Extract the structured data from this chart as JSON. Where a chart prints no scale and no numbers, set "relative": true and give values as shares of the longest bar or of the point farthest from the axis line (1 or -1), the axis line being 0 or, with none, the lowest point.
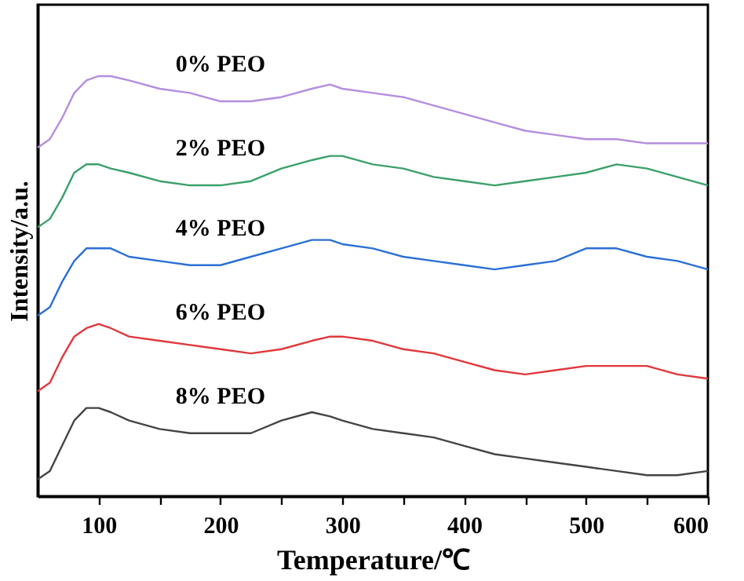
{
  "chart_data": {
    "type": "line",
    "relative": true,
    "xlabel": "Temperature/℃",
    "ylabel": "Intensity/a.u.",
    "x": [
      50,
      60,
      70,
      80,
      90,
      100,
      110,
      125,
      150,
      175,
      200,
      225,
      250,
      275,
      290,
      300,
      325,
      350,
      375,
      400,
      425,
      450,
      475,
      500,
      525,
      550,
      575,
      600
    ],
    "xlim": [
      50,
      600
    ],
    "xticks": [
      100,
      {
        "value": 150,
        "label": null
      },
      200,
      {
        "value": 250,
        "label": null
      },
      300,
      {
        "value": 350,
        "label": null
      },
      400,
      {
        "value": 450,
        "label": null
      },
      500,
      {
        "value": 550,
        "label": null
      },
      600
    ],
    "legend": false,
    "grid": false,
    "marker": "none",
    "line_style": "solid",
    "tick_labels": "x",
    "series": [
      {
        "name": "0% PEO",
        "color": "#b48ee0",
        "values": [
          0.83,
          0.85,
          0.9,
          0.96,
          0.99,
          1.0,
          1.0,
          0.99,
          0.97,
          0.96,
          0.94,
          0.94,
          0.95,
          0.97,
          0.98,
          0.97,
          0.96,
          0.95,
          0.93,
          0.91,
          0.89,
          0.87,
          0.86,
          0.85,
          0.85,
          0.84,
          0.84,
          0.84
        ]
      },
      {
        "name": "2% PEO",
        "color": "#3aa06a",
        "values": [
          0.64,
          0.66,
          0.71,
          0.77,
          0.79,
          0.79,
          0.78,
          0.77,
          0.75,
          0.74,
          0.74,
          0.75,
          0.78,
          0.8,
          0.81,
          0.81,
          0.79,
          0.78,
          0.76,
          0.75,
          0.74,
          0.75,
          0.76,
          0.77,
          0.79,
          0.78,
          0.76,
          0.74
        ]
      },
      {
        "name": "4% PEO",
        "color": "#2a6fd6",
        "values": [
          0.43,
          0.45,
          0.51,
          0.56,
          0.59,
          0.59,
          0.59,
          0.57,
          0.56,
          0.55,
          0.55,
          0.57,
          0.59,
          0.61,
          0.61,
          0.6,
          0.59,
          0.57,
          0.56,
          0.55,
          0.54,
          0.55,
          0.56,
          0.59,
          0.59,
          0.57,
          0.56,
          0.54
        ]
      },
      {
        "name": "6% PEO",
        "color": "#e0383c",
        "values": [
          0.25,
          0.27,
          0.33,
          0.38,
          0.4,
          0.41,
          0.4,
          0.38,
          0.37,
          0.36,
          0.35,
          0.34,
          0.35,
          0.37,
          0.38,
          0.38,
          0.37,
          0.35,
          0.34,
          0.32,
          0.3,
          0.29,
          0.3,
          0.31,
          0.31,
          0.31,
          0.29,
          0.28
        ]
      },
      {
        "name": "8% PEO",
        "color": "#444444",
        "values": [
          0.04,
          0.06,
          0.12,
          0.18,
          0.21,
          0.21,
          0.2,
          0.18,
          0.16,
          0.15,
          0.15,
          0.15,
          0.18,
          0.2,
          0.19,
          0.18,
          0.16,
          0.15,
          0.14,
          0.12,
          0.1,
          0.09,
          0.08,
          0.07,
          0.06,
          0.05,
          0.05,
          0.06
        ]
      }
    ]
  }
}
